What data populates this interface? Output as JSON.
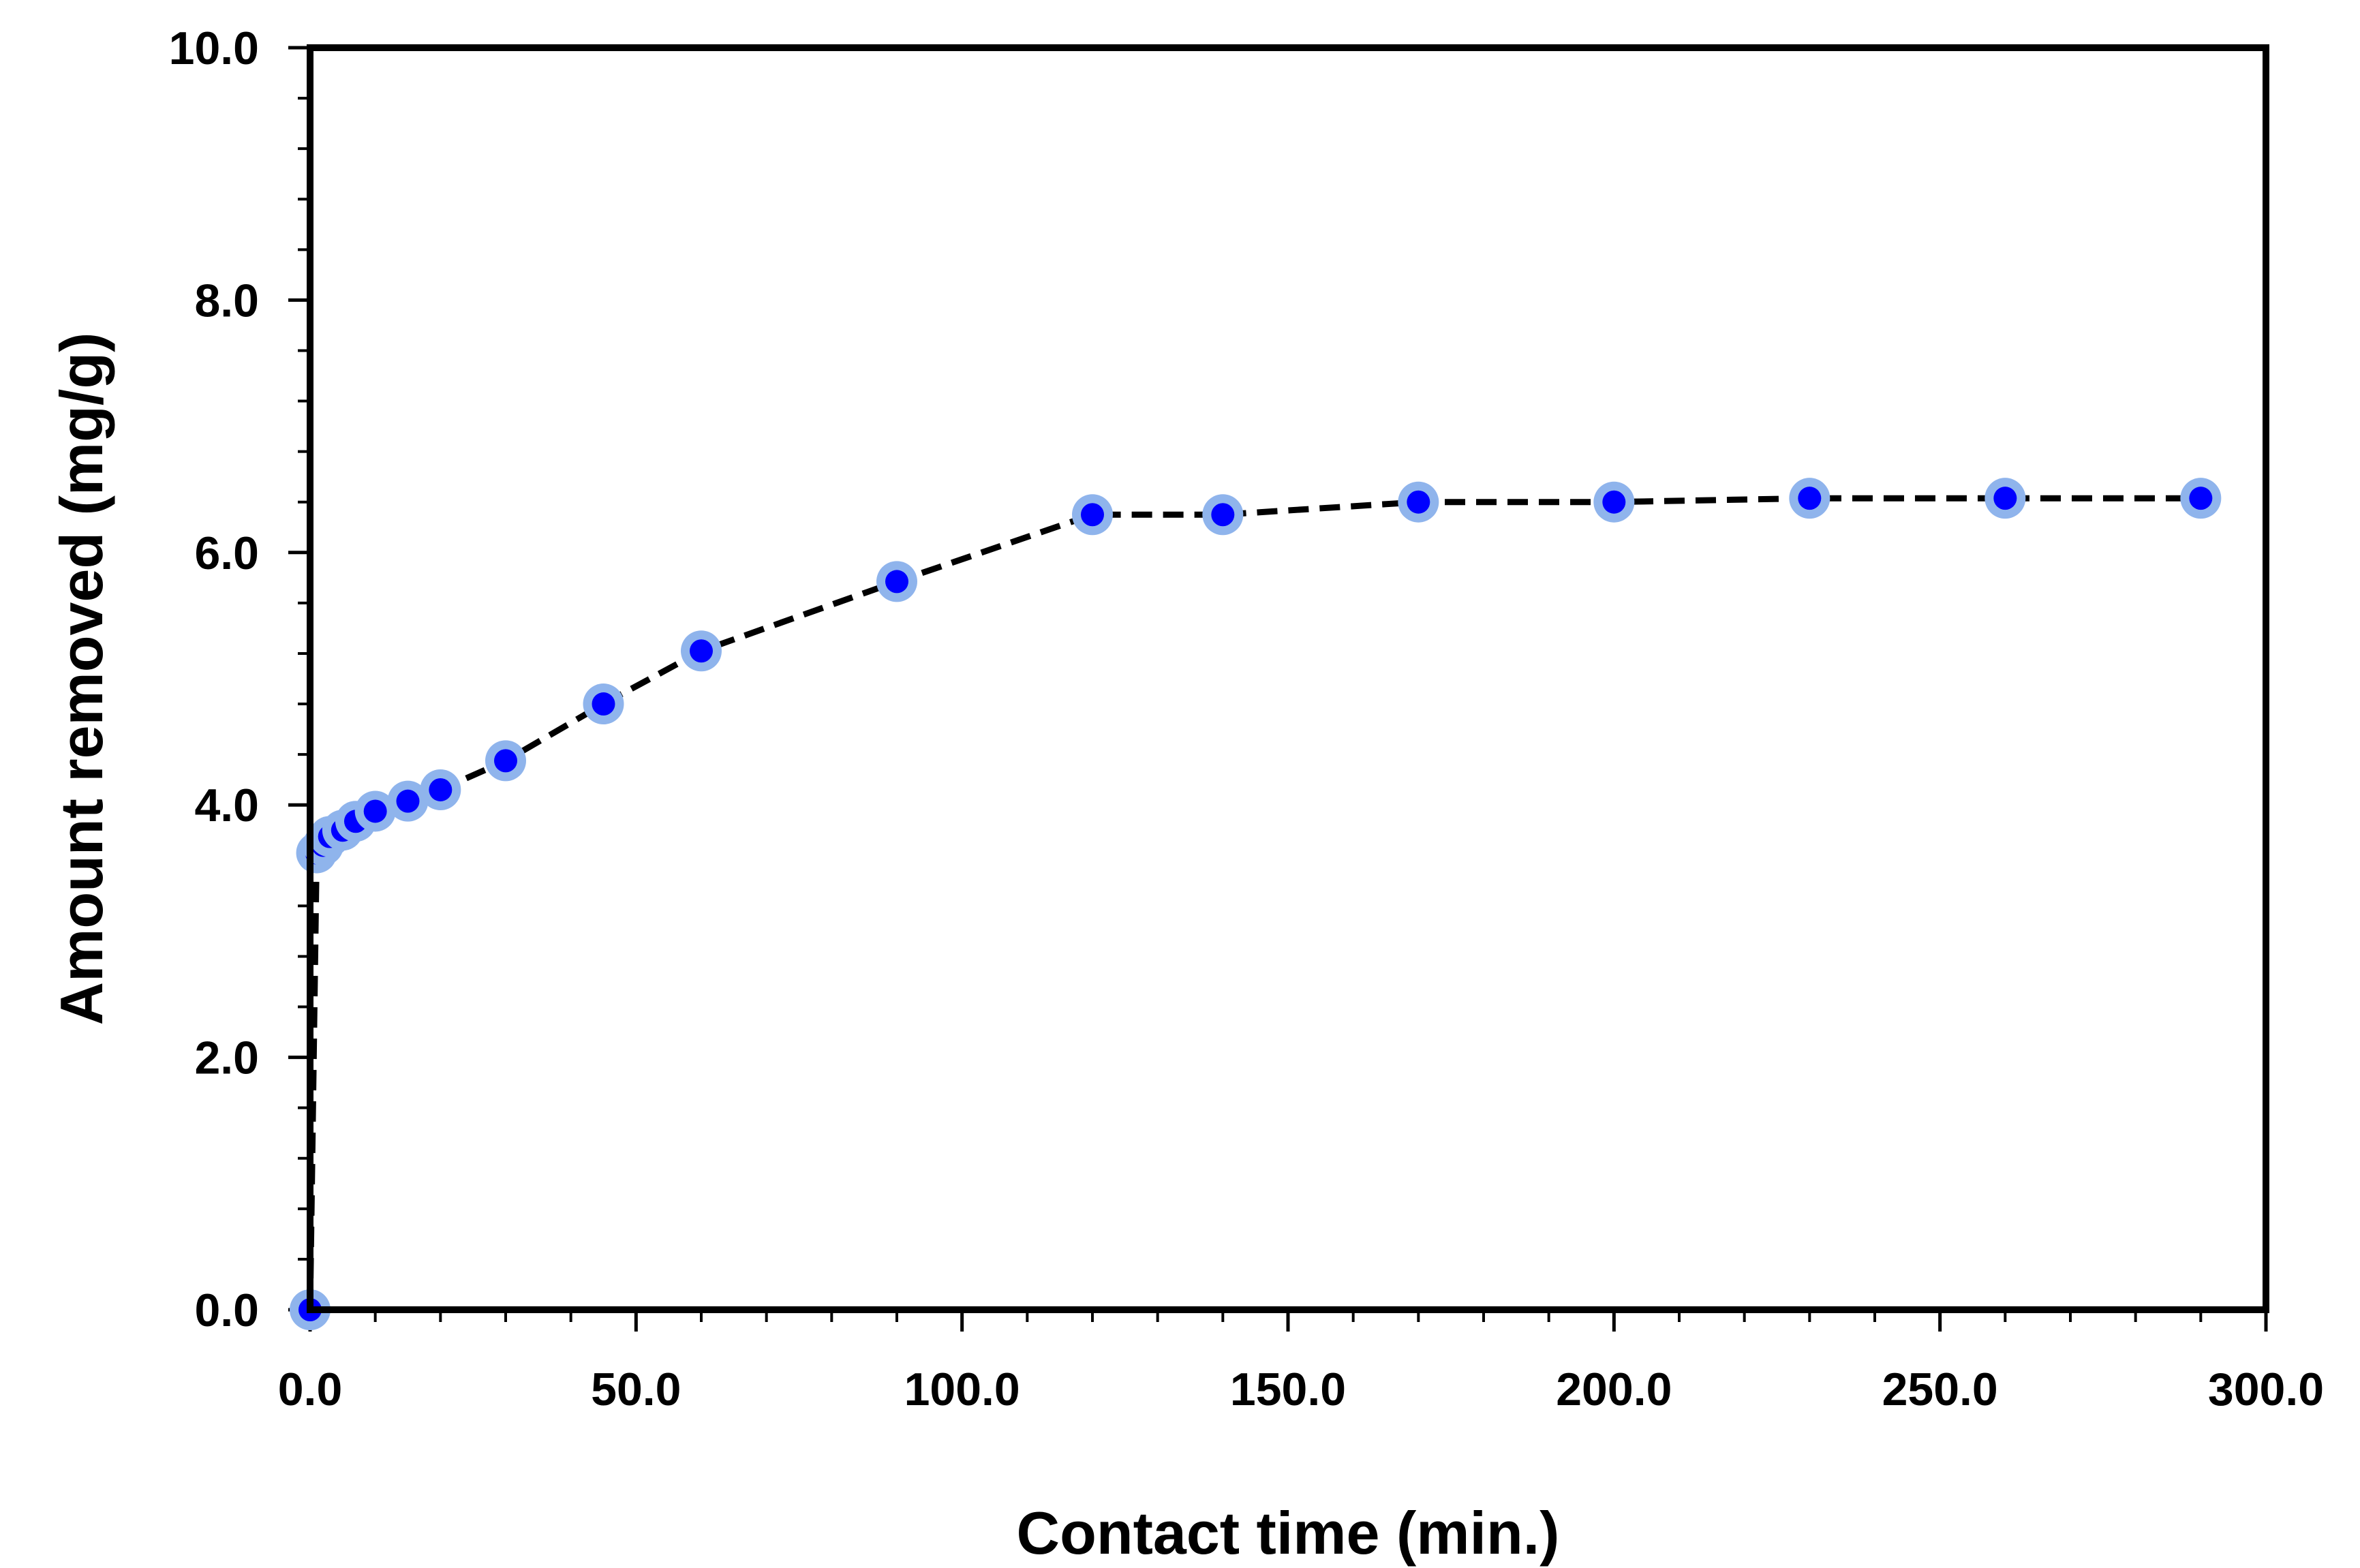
{
  "chart_data": {
    "type": "scatter",
    "title": "",
    "xlabel": "Contact time (min.)",
    "ylabel": "Amount removed (mg/g)",
    "xlim": [
      0,
      300
    ],
    "ylim": [
      0,
      10
    ],
    "x_major_ticks": [
      0,
      50,
      100,
      150,
      200,
      250,
      300
    ],
    "x_tick_labels": [
      "0.0",
      "50.0",
      "100.0",
      "150.0",
      "200.0",
      "250.0",
      "300.0"
    ],
    "x_minor_step": 10,
    "y_major_ticks": [
      0,
      2,
      4,
      6,
      8,
      10
    ],
    "y_tick_labels": [
      "0.0",
      "2.0",
      "4.0",
      "6.0",
      "8.0",
      "10.0"
    ],
    "y_minor_step": 0.4,
    "grid": false,
    "legend": "none",
    "series": [
      {
        "name": "Amount removed",
        "line_style": "dashed",
        "line_color": "#000000",
        "marker_color": "#0000ff",
        "marker_halo_color": "#8fb4ec",
        "x": [
          0,
          1,
          2,
          3,
          5,
          7,
          10,
          15,
          20,
          30,
          45,
          60,
          90,
          120,
          140,
          170,
          200,
          230,
          260,
          290
        ],
        "y": [
          0.0,
          3.62,
          3.68,
          3.75,
          3.8,
          3.87,
          3.95,
          4.03,
          4.12,
          4.35,
          4.8,
          5.22,
          5.77,
          6.3,
          6.3,
          6.4,
          6.4,
          6.43,
          6.43,
          6.43
        ]
      }
    ]
  }
}
